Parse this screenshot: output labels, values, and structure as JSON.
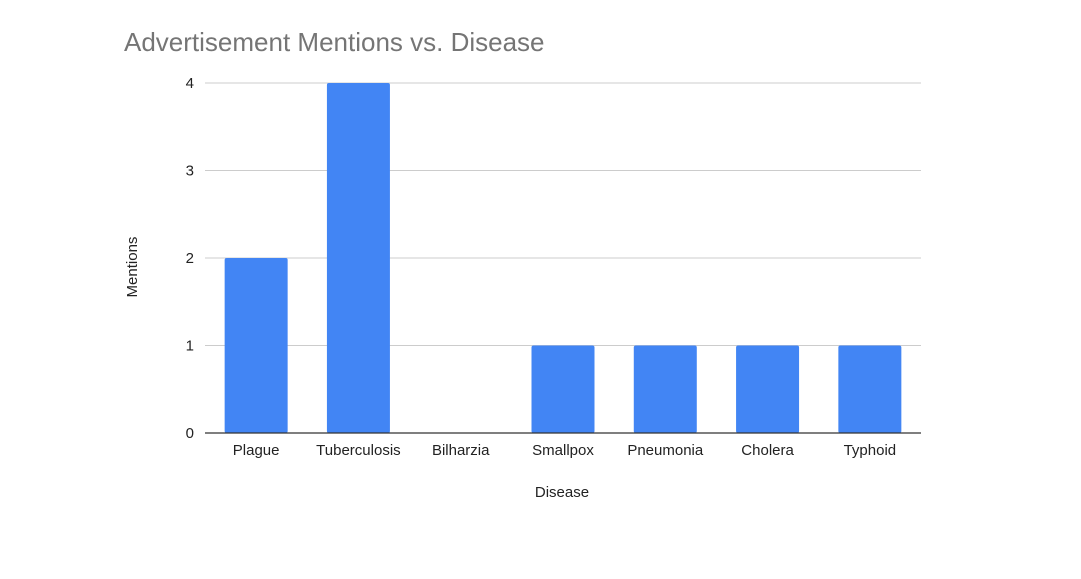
{
  "chart_data": {
    "type": "bar",
    "title": "Advertisement Mentions vs. Disease",
    "xlabel": "Disease",
    "ylabel": "Mentions",
    "categories": [
      "Plague",
      "Tuberculosis",
      "Bilharzia",
      "Smallpox",
      "Pneumonia",
      "Cholera",
      "Typhoid"
    ],
    "values": [
      2,
      4,
      0,
      1,
      1,
      1,
      1
    ],
    "ylim": [
      0,
      4
    ],
    "yticks": [
      0,
      1,
      2,
      3,
      4
    ],
    "grid": true,
    "legend": "none",
    "bar_color": "#4285f4"
  }
}
